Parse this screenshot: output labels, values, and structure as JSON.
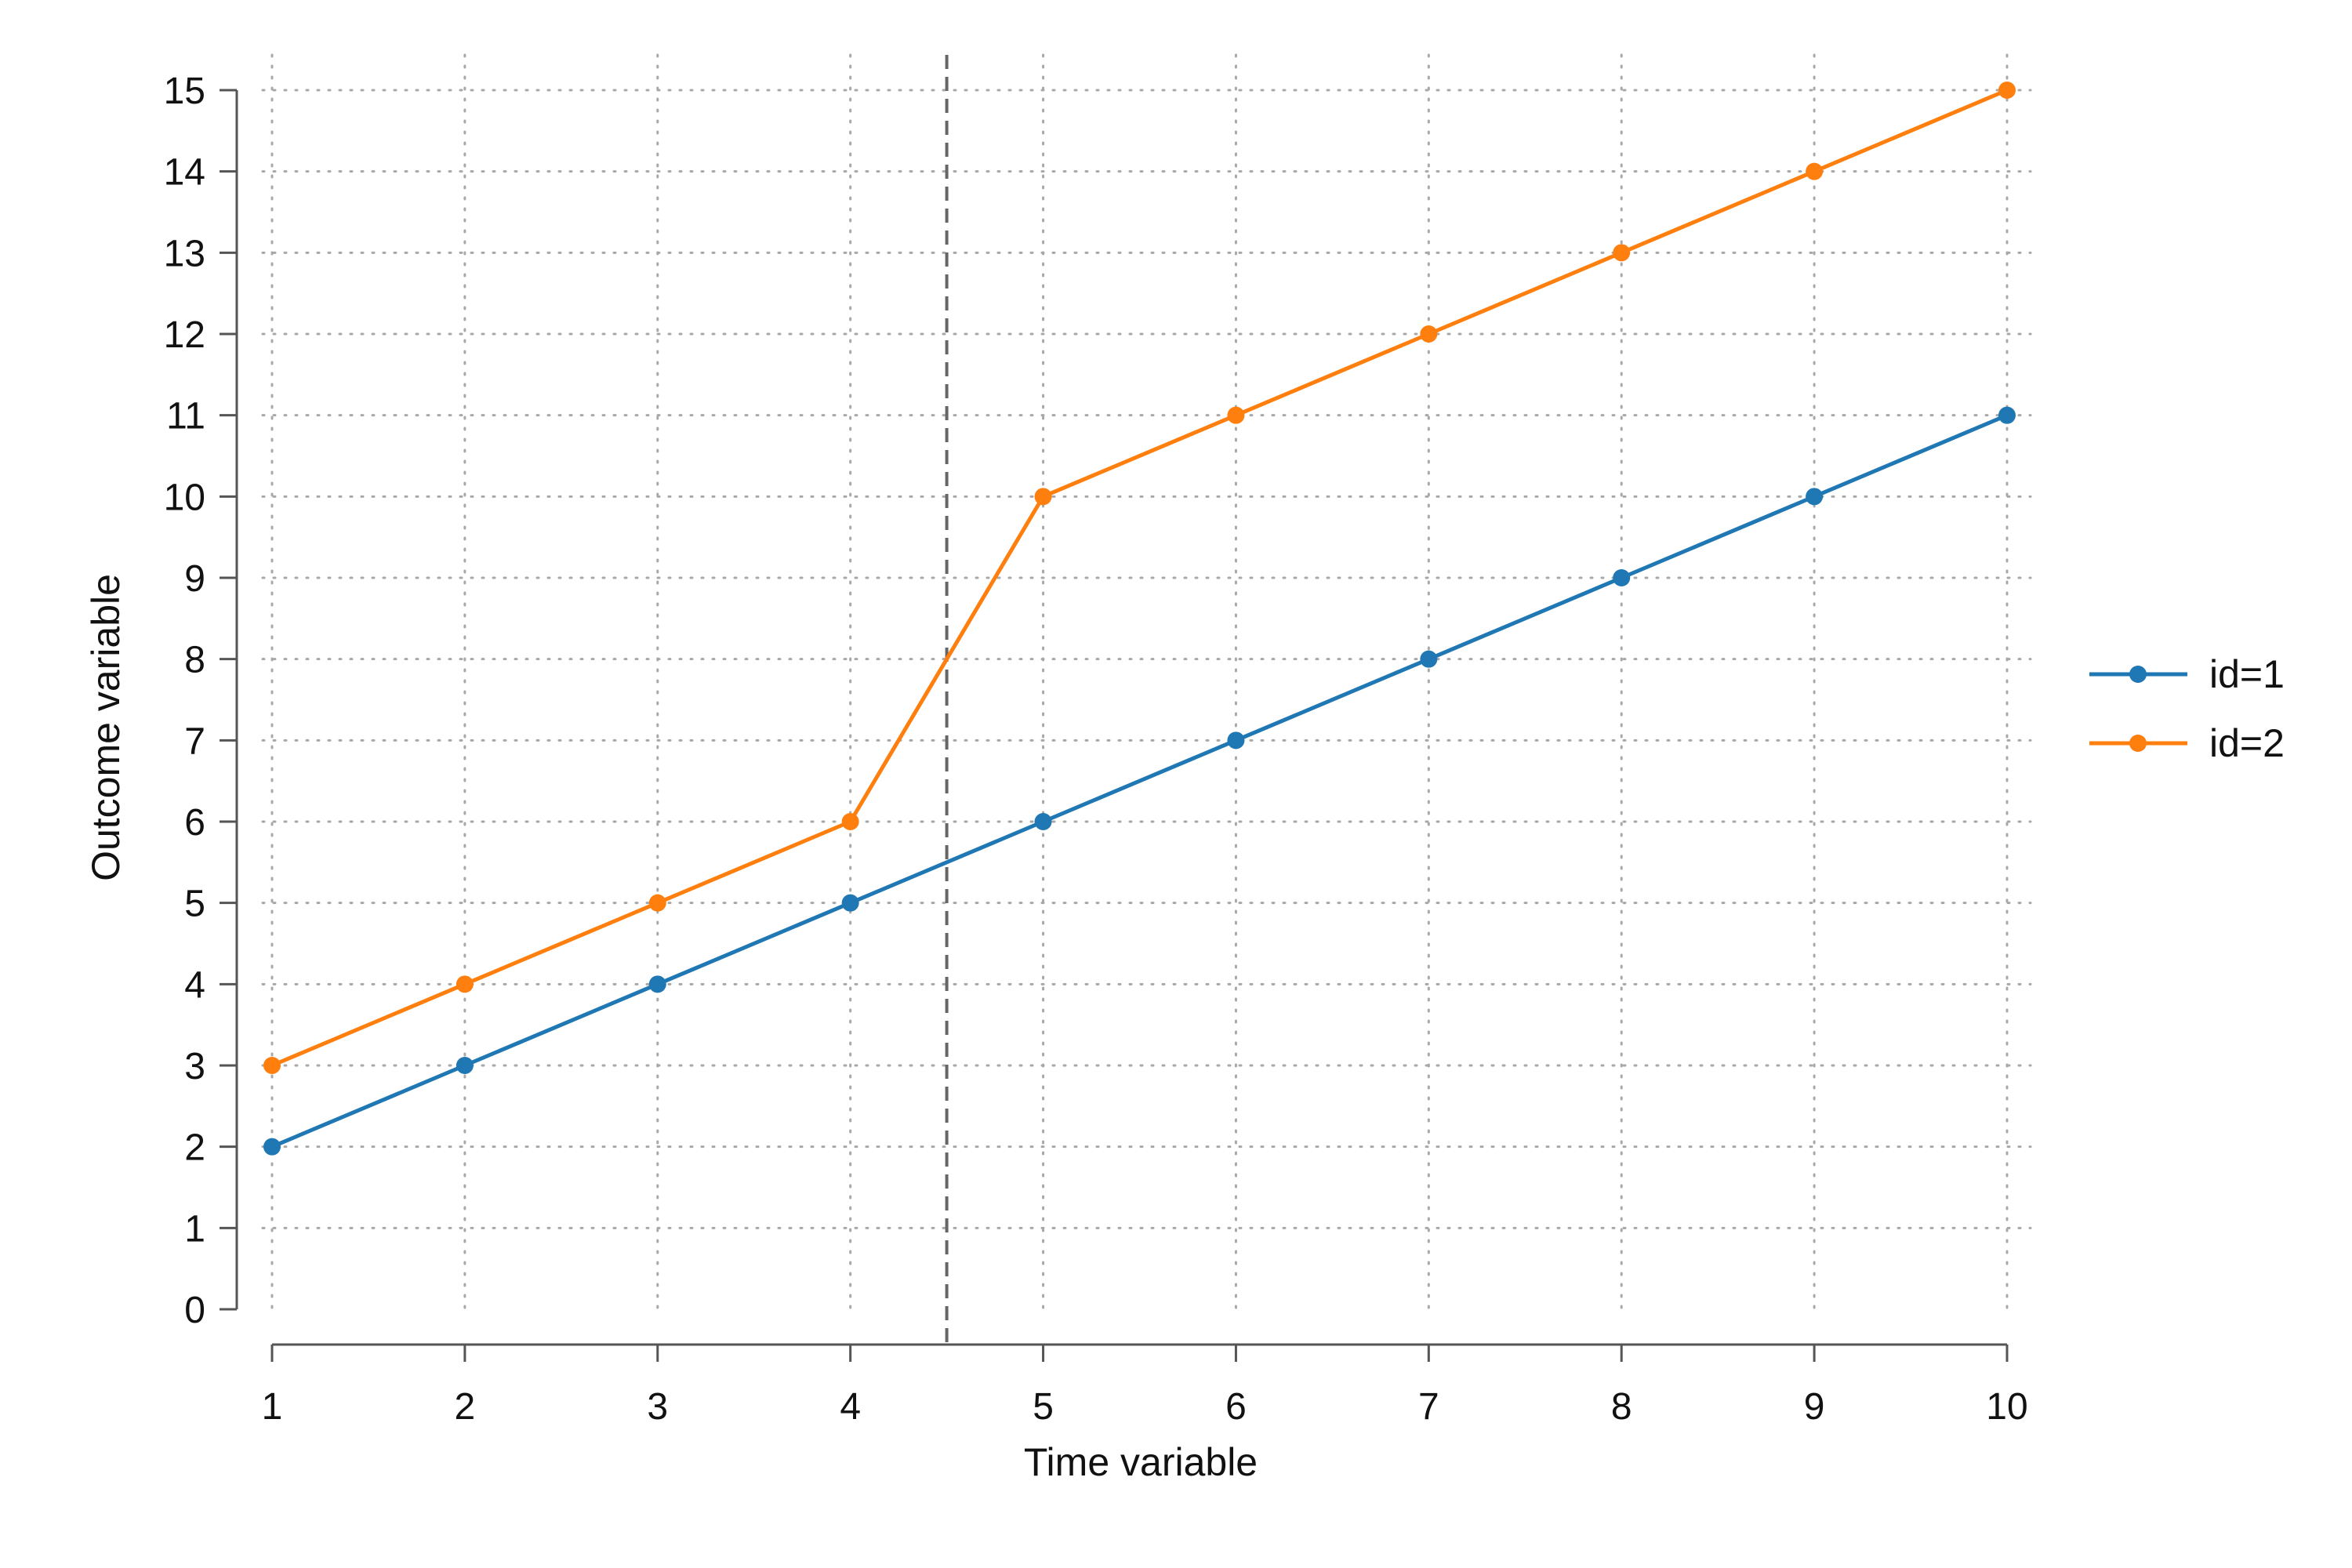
{
  "chart_data": {
    "type": "line",
    "title": "",
    "xlabel": "Time  variable",
    "ylabel": "Outcome variable",
    "x": [
      1,
      2,
      3,
      4,
      5,
      6,
      7,
      8,
      9,
      10
    ],
    "series": [
      {
        "name": "id=1",
        "color": "#1f77b4",
        "values": [
          2,
          3,
          4,
          5,
          6,
          7,
          8,
          9,
          10,
          11
        ]
      },
      {
        "name": "id=2",
        "color": "#ff7f0e",
        "values": [
          3,
          4,
          5,
          6,
          10,
          11,
          12,
          13,
          14,
          15
        ]
      }
    ],
    "xlim": [
      1,
      10
    ],
    "ylim": [
      0,
      15
    ],
    "x_ticks": [
      "1",
      "2",
      "3",
      "4",
      "5",
      "6",
      "7",
      "8",
      "9",
      "10"
    ],
    "y_ticks": [
      "0",
      "1",
      "2",
      "3",
      "4",
      "5",
      "6",
      "7",
      "8",
      "9",
      "10",
      "11",
      "12",
      "13",
      "14",
      "15"
    ],
    "reference_line": {
      "axis": "x",
      "value": 4.5,
      "style": "dashed",
      "color": "#666666"
    },
    "grid": true,
    "grid_style": "dotted",
    "legend_position": "right",
    "marker": "circle"
  }
}
